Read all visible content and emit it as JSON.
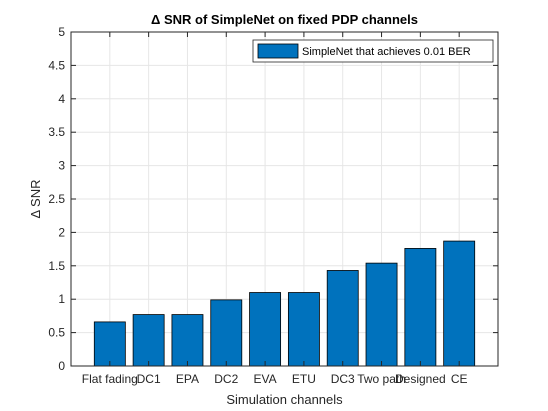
{
  "chart_data": {
    "type": "bar",
    "title": "Δ SNR of SimpleNet on fixed PDP channels",
    "xlabel": "Simulation channels",
    "ylabel": "Δ SNR",
    "categories": [
      "Flat fading",
      "DC1",
      "EPA",
      "DC2",
      "EVA",
      "ETU",
      "DC3",
      "Two path",
      "Designed",
      "CE"
    ],
    "series": [
      {
        "name": "SimpleNet that achieves 0.01 BER",
        "values": [
          0.66,
          0.77,
          0.77,
          0.99,
          1.1,
          1.1,
          1.43,
          1.54,
          1.76,
          1.87
        ],
        "color": "#0072BD"
      }
    ],
    "ylim": [
      0,
      5
    ],
    "yticks": [
      0,
      0.5,
      1,
      1.5,
      2,
      2.5,
      3,
      3.5,
      4,
      4.5,
      5
    ],
    "ytick_labels": [
      "0",
      "0.5",
      "1",
      "1.5",
      "2",
      "2.5",
      "3",
      "3.5",
      "4",
      "4.5",
      "5"
    ],
    "grid": true,
    "legend_position": "top-right"
  }
}
